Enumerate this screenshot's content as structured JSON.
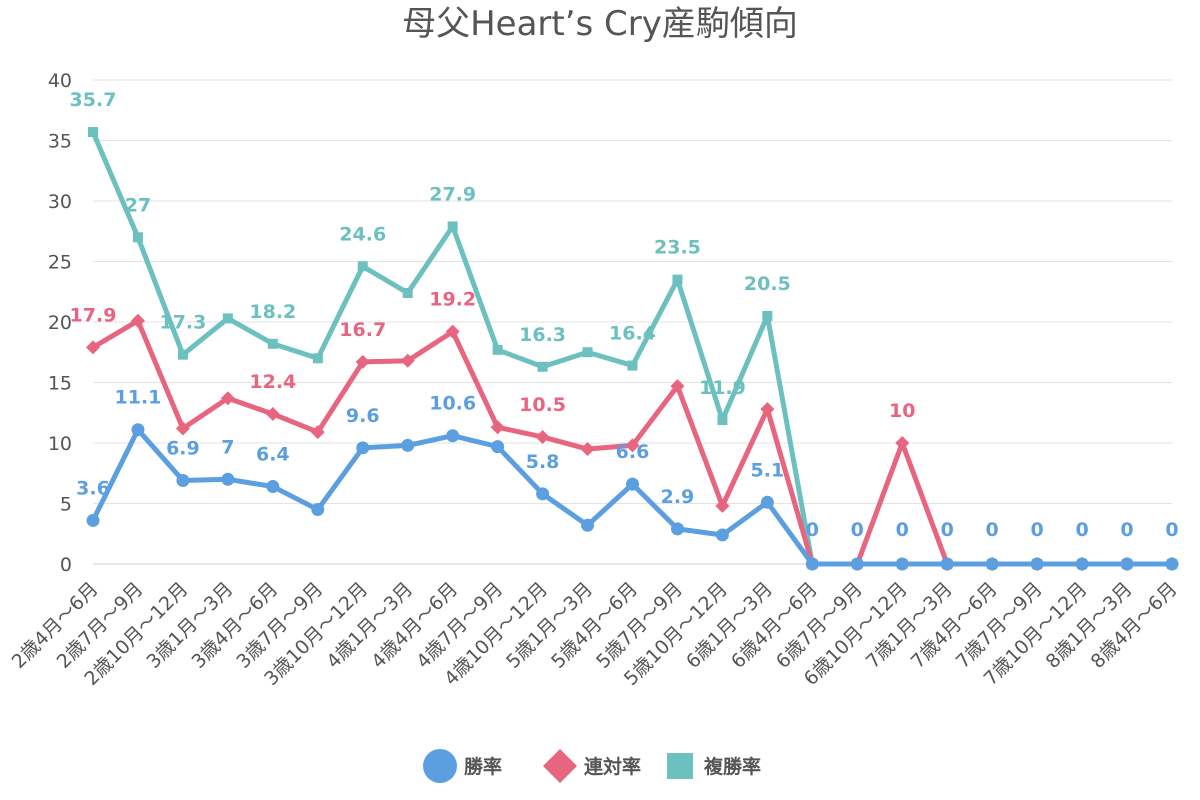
{
  "chart_data": {
    "type": "line",
    "title": "母父Heart’s Cry産駒傾向",
    "xlabel": "",
    "ylabel": "",
    "ylim": [
      0,
      40
    ],
    "yticks": [
      0,
      5,
      10,
      15,
      20,
      25,
      30,
      35,
      40
    ],
    "grid": true,
    "legend_position": "bottom",
    "categories": [
      "2歳4月～6月",
      "2歳7月～9月",
      "2歳10月～12月",
      "3歳1月～3月",
      "3歳4月～6月",
      "3歳7月～9月",
      "3歳10月～12月",
      "4歳1月～3月",
      "4歳4月～6月",
      "4歳7月～9月",
      "4歳10月～12月",
      "5歳1月～3月",
      "5歳4月～6月",
      "5歳7月～9月",
      "5歳10月～12月",
      "6歳1月～3月",
      "6歳4月～6月",
      "6歳7月～9月",
      "6歳10月～12月",
      "7歳1月～3月",
      "7歳4月～6月",
      "7歳7月～9月",
      "7歳10月～12月",
      "8歳1月～3月",
      "8歳4月～6月"
    ],
    "series": [
      {
        "name": "勝率",
        "color": "#5b9fe0",
        "marker": "circle",
        "values": [
          3.6,
          11.1,
          6.9,
          7,
          6.4,
          4.5,
          9.6,
          9.8,
          10.6,
          9.7,
          5.8,
          3.2,
          6.6,
          2.9,
          2.4,
          5.1,
          0,
          0,
          0,
          0,
          0,
          0,
          0,
          0,
          0
        ],
        "labels": [
          "3.6",
          "11.1",
          "6.9",
          "7",
          "6.4",
          "",
          "9.6",
          "",
          "10.6",
          "",
          "5.8",
          "",
          "6.6",
          "2.9",
          "",
          "5.1",
          "0",
          "0",
          "0",
          "0",
          "0",
          "0",
          "0",
          "0",
          "0"
        ]
      },
      {
        "name": "連対率",
        "color": "#e8657f",
        "marker": "diamond",
        "values": [
          17.9,
          20.1,
          11.2,
          13.7,
          12.4,
          10.9,
          16.7,
          16.8,
          19.2,
          11.3,
          10.5,
          9.5,
          9.8,
          14.7,
          4.8,
          12.8,
          0,
          0,
          10,
          0,
          0,
          0,
          0,
          0,
          0
        ],
        "labels": [
          "17.9",
          "",
          "",
          "",
          "12.4",
          "",
          "16.7",
          "",
          "19.2",
          "",
          "10.5",
          "",
          "",
          "",
          "",
          "",
          "",
          "",
          "10",
          "",
          "",
          "",
          "",
          "",
          ""
        ]
      },
      {
        "name": "複勝率",
        "color": "#6cc0bf",
        "marker": "square",
        "values": [
          35.7,
          27,
          17.3,
          20.3,
          18.2,
          17,
          24.6,
          22.4,
          27.9,
          17.7,
          16.3,
          17.5,
          16.4,
          23.5,
          11.9,
          20.5,
          0,
          0,
          0,
          0,
          0,
          0,
          0,
          0,
          0
        ],
        "labels": [
          "35.7",
          "27",
          "17.3",
          "",
          "18.2",
          "",
          "24.6",
          "",
          "27.9",
          "",
          "16.3",
          "",
          "16.4",
          "23.5",
          "11.9",
          "20.5",
          "",
          "",
          "",
          "",
          "",
          "",
          "",
          "",
          ""
        ]
      }
    ]
  }
}
